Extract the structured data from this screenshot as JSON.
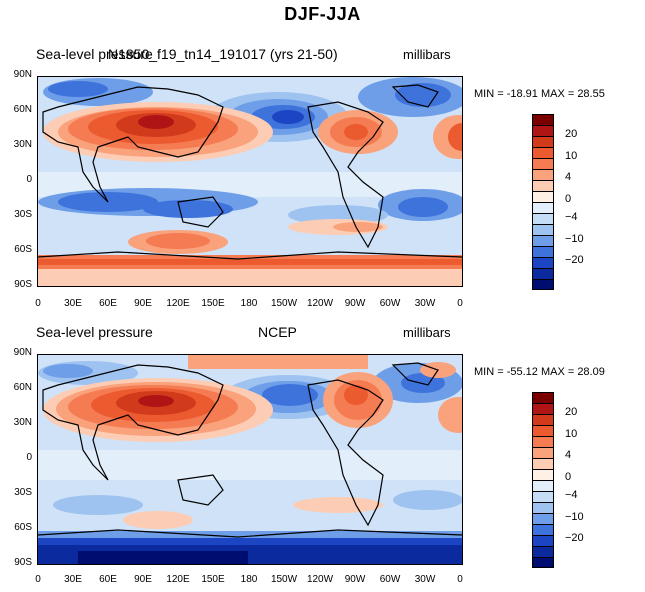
{
  "title": "DJF-JJA",
  "colors": {
    "scale": [
      "#7a0000",
      "#b01515",
      "#d23a1c",
      "#ec5a30",
      "#f57c52",
      "#f9a27c",
      "#fccdb4",
      "#fff0e5",
      "#e3eefb",
      "#c5dcf7",
      "#9ec3f0",
      "#6e9ee8",
      "#3f73dc",
      "#1c45c4",
      "#0a2a9e",
      "#000d70"
    ]
  },
  "colorbar": {
    "labels": [
      "20",
      "10",
      "4",
      "0",
      "−4",
      "−10",
      "−20"
    ]
  },
  "axes": {
    "lat_labels": [
      "90N",
      "60N",
      "30N",
      "0",
      "30S",
      "60S",
      "90S"
    ],
    "lon_labels": [
      "0",
      "30E",
      "60E",
      "90E",
      "120E",
      "150E",
      "180",
      "150W",
      "120W",
      "90W",
      "60W",
      "30W",
      "0"
    ]
  },
  "panels": [
    {
      "variable": "Sea-level pressure",
      "model": "N1850_f19_tn14_191017 (yrs 21-50)",
      "units": "millibars",
      "stats": "MIN = -18.91 MAX =   28.55"
    },
    {
      "variable": "Sea-level pressure",
      "model": "NCEP",
      "units": "millibars",
      "stats": "MIN = -55.12 MAX =   28.09"
    }
  ]
}
